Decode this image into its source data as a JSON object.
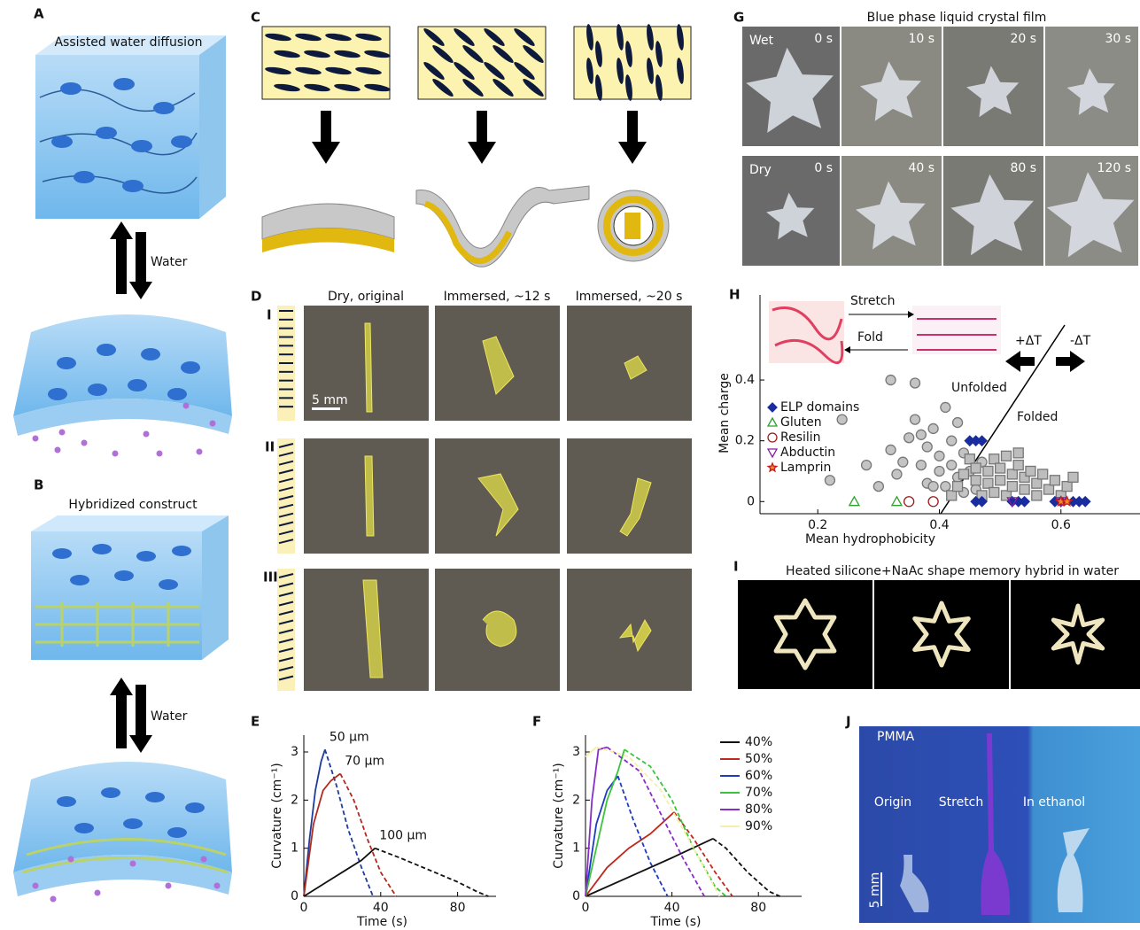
{
  "panels": {
    "A": {
      "label": "A",
      "title": "Assisted water diffusion",
      "arrow": "Water"
    },
    "B": {
      "label": "B",
      "title": "Hybridized construct",
      "arrow": "Water"
    },
    "C": {
      "label": "C"
    },
    "D": {
      "label": "D",
      "columns": [
        "Dry, original",
        "Immersed, ~12 s",
        "Immersed, ~20 s"
      ],
      "rows": [
        "I",
        "II",
        "III"
      ],
      "scale_bar": "5 mm"
    },
    "G": {
      "label": "G",
      "title": "Blue phase liquid crystal film",
      "rows": [
        {
          "label": "Wet",
          "times": [
            "0 s",
            "10 s",
            "20 s",
            "30 s"
          ]
        },
        {
          "label": "Dry",
          "times": [
            "0 s",
            "40 s",
            "80 s",
            "120 s"
          ]
        }
      ]
    },
    "I": {
      "label": "I",
      "title": "Heated silicone+NaAc shape memory hybrid in water"
    },
    "J": {
      "label": "J",
      "sample": "PMMA",
      "captions": [
        "Origin",
        "Stretch",
        "In ethanol"
      ],
      "scale_bar": "5 mm"
    }
  },
  "chart_data": [
    {
      "type": "line",
      "label": "E",
      "xlabel": "Time (s)",
      "ylabel": "Curvature (cm⁻¹)",
      "xlim": [
        0,
        100
      ],
      "xticks": [
        0,
        40,
        80
      ],
      "ylim": [
        0,
        3.35
      ],
      "yticks": [
        0,
        1,
        2,
        3
      ],
      "legend": false,
      "series": [
        {
          "name": "50 μm",
          "color": "#1f3c9c",
          "segments": [
            {
              "style": "solid",
              "x": [
                0,
                3,
                6,
                9,
                11
              ],
              "values": [
                0,
                1.2,
                2.2,
                2.8,
                3.05
              ]
            },
            {
              "style": "dashed",
              "x": [
                11,
                17,
                23,
                30,
                36
              ],
              "values": [
                3.05,
                2.3,
                1.4,
                0.6,
                0
              ]
            }
          ]
        },
        {
          "name": "70 μm",
          "color": "#b22a1c",
          "segments": [
            {
              "style": "solid",
              "x": [
                0,
                5,
                10,
                14,
                19
              ],
              "values": [
                0,
                1.5,
                2.2,
                2.4,
                2.55
              ]
            },
            {
              "style": "dashed",
              "x": [
                19,
                26,
                33,
                40,
                48
              ],
              "values": [
                2.55,
                2.0,
                1.2,
                0.5,
                0
              ]
            }
          ]
        },
        {
          "name": "100 μm",
          "color": "#111111",
          "segments": [
            {
              "style": "solid",
              "x": [
                0,
                10,
                20,
                30,
                37
              ],
              "values": [
                0,
                0.25,
                0.5,
                0.75,
                1.0
              ]
            },
            {
              "style": "dashed",
              "x": [
                37,
                50,
                65,
                80,
                90,
                96
              ],
              "values": [
                1.0,
                0.8,
                0.55,
                0.3,
                0.1,
                0
              ]
            }
          ]
        }
      ]
    },
    {
      "type": "line",
      "label": "F",
      "xlabel": "Time (s)",
      "ylabel": "Curvature (cm⁻¹)",
      "xlim": [
        0,
        100
      ],
      "xticks": [
        0,
        40,
        80
      ],
      "ylim": [
        0,
        3.35
      ],
      "yticks": [
        0,
        1,
        2,
        3
      ],
      "legend": "upper right",
      "series": [
        {
          "name": "40%",
          "color": "#111111",
          "segments": [
            {
              "style": "solid",
              "x": [
                0,
                20,
                40,
                59
              ],
              "values": [
                0,
                0.4,
                0.8,
                1.2
              ]
            },
            {
              "style": "dashed",
              "x": [
                59,
                65,
                75,
                85,
                90
              ],
              "values": [
                1.2,
                1.0,
                0.5,
                0.1,
                0
              ]
            }
          ]
        },
        {
          "name": "50%",
          "color": "#c0281c",
          "segments": [
            {
              "style": "solid",
              "x": [
                0,
                10,
                20,
                30,
                41
              ],
              "values": [
                0,
                0.6,
                1.0,
                1.3,
                1.75
              ]
            },
            {
              "style": "dashed",
              "x": [
                41,
                50,
                60,
                68
              ],
              "values": [
                1.75,
                1.2,
                0.5,
                0
              ]
            }
          ]
        },
        {
          "name": "60%",
          "color": "#1f3cc0",
          "segments": [
            {
              "style": "solid",
              "x": [
                0,
                5,
                10,
                15
              ],
              "values": [
                0,
                1.5,
                2.2,
                2.5
              ]
            },
            {
              "style": "dashed",
              "x": [
                15,
                22,
                30,
                38
              ],
              "values": [
                2.5,
                1.6,
                0.7,
                0
              ]
            }
          ]
        },
        {
          "name": "70%",
          "color": "#3cc43c",
          "segments": [
            {
              "style": "solid",
              "x": [
                0,
                5,
                10,
                15,
                18
              ],
              "values": [
                0,
                1.0,
                2.0,
                2.6,
                3.05
              ]
            },
            {
              "style": "dashed",
              "x": [
                18,
                30,
                40,
                50,
                60,
                65
              ],
              "values": [
                3.05,
                2.7,
                2.0,
                1.0,
                0.2,
                0
              ]
            }
          ]
        },
        {
          "name": "80%",
          "color": "#8a2cc8",
          "segments": [
            {
              "style": "solid",
              "x": [
                0,
                3,
                6,
                10
              ],
              "values": [
                0,
                2.0,
                3.05,
                3.1
              ]
            },
            {
              "style": "dashed",
              "x": [
                10,
                25,
                35,
                45,
                55
              ],
              "values": [
                3.1,
                2.6,
                1.7,
                0.8,
                0
              ]
            }
          ]
        },
        {
          "name": "90%",
          "color": "#f4f0a8",
          "segments": [
            {
              "style": "solid",
              "x": [
                0,
                5
              ],
              "values": [
                2.9,
                3.1
              ]
            },
            {
              "style": "dashed",
              "x": [
                5,
                20,
                35,
                50,
                62
              ],
              "values": [
                3.1,
                2.9,
                2.2,
                1.0,
                0
              ]
            }
          ]
        }
      ]
    },
    {
      "type": "scatter",
      "label": "H",
      "xlabel": "Mean hydrophobicity",
      "ylabel": "Mean charge",
      "xlim": [
        0.105,
        0.73
      ],
      "xticks": [
        0.2,
        0.4,
        0.6
      ],
      "ylim": [
        -0.04,
        0.68
      ],
      "yticks": [
        0,
        0.2,
        0.4
      ],
      "legend": "upper left",
      "annotations": [
        "Stretch",
        "Fold",
        "+ΔT",
        "-ΔT",
        "Unfolded",
        "Folded"
      ],
      "series": [
        {
          "marker": "circle",
          "color": "#c4c4c4",
          "filled": true,
          "x": [
            0.22,
            0.24,
            0.28,
            0.3,
            0.32,
            0.33,
            0.34,
            0.35,
            0.36,
            0.37,
            0.38,
            0.38,
            0.39,
            0.4,
            0.4,
            0.41,
            0.41,
            0.42,
            0.42,
            0.43,
            0.43,
            0.44,
            0.45,
            0.36,
            0.32,
            0.39,
            0.46,
            0.47,
            0.44,
            0.37
          ],
          "values": [
            0.07,
            0.27,
            0.12,
            0.05,
            0.17,
            0.09,
            0.13,
            0.21,
            0.27,
            0.12,
            0.18,
            0.06,
            0.24,
            0.1,
            0.15,
            0.31,
            0.05,
            0.2,
            0.12,
            0.08,
            0.26,
            0.16,
            0.1,
            0.39,
            0.4,
            0.05,
            0.04,
            0.13,
            0.03,
            0.22
          ]
        },
        {
          "marker": "square",
          "color": "#bdbdbd",
          "filled": true,
          "x": [
            0.42,
            0.43,
            0.44,
            0.45,
            0.46,
            0.46,
            0.47,
            0.48,
            0.48,
            0.49,
            0.49,
            0.5,
            0.5,
            0.51,
            0.51,
            0.52,
            0.52,
            0.53,
            0.54,
            0.54,
            0.55,
            0.56,
            0.56,
            0.57,
            0.58,
            0.59,
            0.6,
            0.61,
            0.62,
            0.53
          ],
          "values": [
            0.02,
            0.05,
            0.09,
            0.14,
            0.07,
            0.11,
            0.02,
            0.06,
            0.1,
            0.03,
            0.14,
            0.07,
            0.11,
            0.02,
            0.15,
            0.05,
            0.09,
            0.12,
            0.04,
            0.08,
            0.1,
            0.02,
            0.06,
            0.09,
            0.04,
            0.07,
            0.02,
            0.05,
            0.08,
            0.16
          ]
        },
        {
          "name": "ELP domains",
          "marker": "diamond",
          "color": "#1a2d9e",
          "filled": true,
          "x": [
            0.45,
            0.46,
            0.47,
            0.46,
            0.47,
            0.52,
            0.53,
            0.54,
            0.59,
            0.6,
            0.62,
            0.63,
            0.64
          ],
          "values": [
            0.2,
            0.2,
            0.2,
            0,
            0,
            0,
            0,
            0,
            0,
            0,
            0,
            0,
            0
          ]
        },
        {
          "name": "Gluten",
          "marker": "triangle",
          "color": "#2ea02e",
          "filled": false,
          "x": [
            0.26,
            0.33
          ],
          "values": [
            0,
            0
          ]
        },
        {
          "name": "Resilin",
          "marker": "circle",
          "color": "#9a1c1c",
          "filled": false,
          "x": [
            0.35,
            0.39
          ],
          "values": [
            0,
            0
          ]
        },
        {
          "name": "Abductin",
          "marker": "triangle-down",
          "color": "#8a1ca0",
          "filled": false,
          "x": [
            0.52,
            0.6
          ],
          "values": [
            0,
            0
          ]
        },
        {
          "name": "Lamprin",
          "marker": "star",
          "color": "#f08c1c",
          "filled": true,
          "x": [
            0.6,
            0.61
          ],
          "values": [
            0,
            0
          ]
        }
      ]
    }
  ]
}
